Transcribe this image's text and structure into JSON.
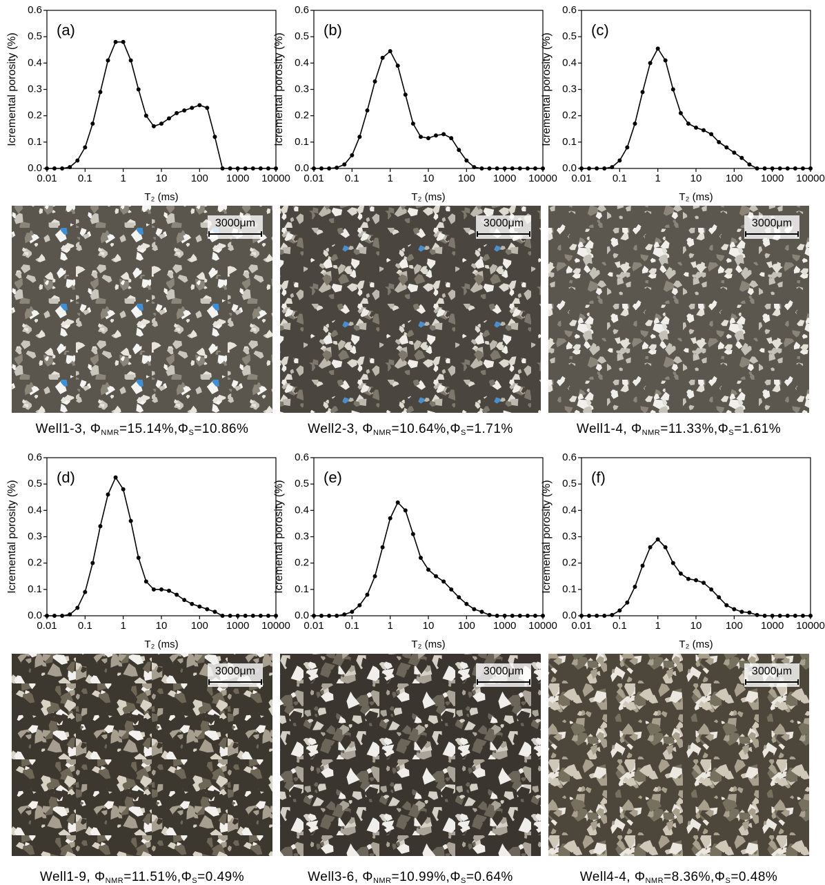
{
  "chart_data": [
    {
      "type": "line",
      "label": "(a)",
      "xlabel": "T₂ (ms)",
      "ylabel": "Icremental porosity (%)",
      "xscale": "log",
      "color": "#000000",
      "x": [
        0.01,
        0.0158,
        0.0251,
        0.0398,
        0.0631,
        0.1,
        0.158,
        0.251,
        0.398,
        0.631,
        1,
        1.58,
        2.51,
        3.98,
        6.31,
        10,
        15.8,
        25.1,
        39.8,
        63.1,
        100,
        158,
        251,
        398,
        631,
        1000,
        1585,
        2512,
        3981,
        6310,
        10000
      ],
      "values": [
        0,
        0,
        0,
        0.005,
        0.03,
        0.08,
        0.17,
        0.29,
        0.41,
        0.48,
        0.48,
        0.41,
        0.3,
        0.2,
        0.16,
        0.17,
        0.19,
        0.21,
        0.22,
        0.23,
        0.24,
        0.23,
        0.12,
        0,
        0,
        0,
        0,
        0,
        0,
        0,
        0
      ],
      "xlim": [
        0.01,
        10000
      ],
      "ylim": [
        0,
        0.6
      ],
      "xticks": [
        0.01,
        0.1,
        1,
        10,
        100,
        1000,
        10000
      ],
      "yticks": [
        {
          "value": 0,
          "label": "0.0"
        },
        0.1,
        0.2,
        0.3,
        0.4,
        0.5,
        0.6
      ]
    },
    {
      "type": "line",
      "label": "(b)",
      "xlabel": "T₂ (ms)",
      "ylabel": "Icremental porosity (%)",
      "xscale": "log",
      "color": "#000000",
      "x": [
        0.01,
        0.0158,
        0.0251,
        0.0398,
        0.0631,
        0.1,
        0.158,
        0.251,
        0.398,
        0.631,
        1,
        1.58,
        2.51,
        3.98,
        6.31,
        10,
        15.8,
        25.1,
        39.8,
        63.1,
        100,
        158,
        251,
        398,
        631,
        1000,
        1585,
        2512,
        3981,
        6310,
        10000
      ],
      "values": [
        0,
        0,
        0,
        0.003,
        0.015,
        0.05,
        0.12,
        0.22,
        0.33,
        0.42,
        0.445,
        0.39,
        0.28,
        0.17,
        0.12,
        0.115,
        0.125,
        0.13,
        0.115,
        0.07,
        0.03,
        0.005,
        0,
        0,
        0,
        0,
        0,
        0,
        0,
        0,
        0
      ],
      "xlim": [
        0.01,
        10000
      ],
      "ylim": [
        0,
        0.6
      ],
      "xticks": [
        0.01,
        0.1,
        1,
        10,
        100,
        1000,
        10000
      ],
      "yticks": [
        {
          "value": 0,
          "label": "0.0"
        },
        0.1,
        0.2,
        0.3,
        0.4,
        0.5,
        0.6
      ]
    },
    {
      "type": "line",
      "label": "(c)",
      "xlabel": "T₂ (ms)",
      "ylabel": "Icremental porosity (%)",
      "xscale": "log",
      "color": "#000000",
      "x": [
        0.01,
        0.0158,
        0.0251,
        0.0398,
        0.0631,
        0.1,
        0.158,
        0.251,
        0.398,
        0.631,
        1,
        1.58,
        2.51,
        3.98,
        6.31,
        10,
        15.8,
        25.1,
        39.8,
        63.1,
        100,
        158,
        251,
        398,
        631,
        1000,
        1585,
        2512,
        3981,
        6310,
        10000
      ],
      "values": [
        0,
        0,
        0,
        0,
        0.005,
        0.03,
        0.08,
        0.17,
        0.29,
        0.4,
        0.455,
        0.41,
        0.3,
        0.21,
        0.17,
        0.155,
        0.145,
        0.13,
        0.1,
        0.08,
        0.06,
        0.04,
        0.015,
        0,
        0,
        0,
        0,
        0,
        0,
        0,
        0
      ],
      "xlim": [
        0.01,
        10000
      ],
      "ylim": [
        0,
        0.6
      ],
      "xticks": [
        0.01,
        0.1,
        1,
        10,
        100,
        1000,
        10000
      ],
      "yticks": [
        {
          "value": 0,
          "label": "0.0"
        },
        0.1,
        0.2,
        0.3,
        0.4,
        0.5,
        0.6
      ]
    },
    {
      "type": "line",
      "label": "(d)",
      "xlabel": "T₂ (ms)",
      "ylabel": "Icremental porosity (%)",
      "xscale": "log",
      "color": "#000000",
      "x": [
        0.01,
        0.0158,
        0.0251,
        0.0398,
        0.0631,
        0.1,
        0.158,
        0.251,
        0.398,
        0.631,
        1,
        1.58,
        2.51,
        3.98,
        6.31,
        10,
        15.8,
        25.1,
        39.8,
        63.1,
        100,
        158,
        251,
        398,
        631,
        1000,
        1585,
        2512,
        3981,
        6310,
        10000
      ],
      "values": [
        0,
        0,
        0,
        0.005,
        0.03,
        0.09,
        0.2,
        0.34,
        0.46,
        0.525,
        0.48,
        0.36,
        0.22,
        0.13,
        0.1,
        0.1,
        0.095,
        0.08,
        0.06,
        0.045,
        0.035,
        0.025,
        0.015,
        0,
        0,
        0,
        0,
        0,
        0,
        0,
        0
      ],
      "xlim": [
        0.01,
        10000
      ],
      "ylim": [
        0,
        0.6
      ],
      "xticks": [
        0.01,
        0.1,
        1,
        10,
        100,
        1000,
        10000
      ],
      "yticks": [
        {
          "value": 0,
          "label": "0.0"
        },
        0.1,
        0.2,
        0.3,
        0.4,
        0.5,
        0.6
      ]
    },
    {
      "type": "line",
      "label": "(e)",
      "xlabel": "T₂ (ms)",
      "ylabel": "Icremental porosity (%)",
      "xscale": "log",
      "color": "#000000",
      "x": [
        0.01,
        0.0158,
        0.0251,
        0.0398,
        0.0631,
        0.1,
        0.158,
        0.251,
        0.398,
        0.631,
        1,
        1.58,
        2.51,
        3.98,
        6.31,
        10,
        15.8,
        25.1,
        39.8,
        63.1,
        100,
        158,
        251,
        398,
        631,
        1000,
        1585,
        2512,
        3981,
        6310,
        10000
      ],
      "values": [
        0,
        0,
        0,
        0,
        0.005,
        0.015,
        0.04,
        0.08,
        0.15,
        0.26,
        0.37,
        0.43,
        0.4,
        0.31,
        0.22,
        0.175,
        0.15,
        0.13,
        0.1,
        0.07,
        0.045,
        0.025,
        0.015,
        0.003,
        0,
        0,
        0,
        0,
        0,
        0,
        0
      ],
      "xlim": [
        0.01,
        10000
      ],
      "ylim": [
        0,
        0.6
      ],
      "xticks": [
        0.01,
        0.1,
        1,
        10,
        100,
        1000,
        10000
      ],
      "yticks": [
        {
          "value": 0,
          "label": "0.0"
        },
        0.1,
        0.2,
        0.3,
        0.4,
        0.5,
        0.6
      ]
    },
    {
      "type": "line",
      "label": "(f)",
      "xlabel": "T₂ (ms)",
      "ylabel": "Icremental porosity (%)",
      "xscale": "log",
      "color": "#000000",
      "x": [
        0.01,
        0.0158,
        0.0251,
        0.0398,
        0.0631,
        0.1,
        0.158,
        0.251,
        0.398,
        0.631,
        1,
        1.58,
        2.51,
        3.98,
        6.31,
        10,
        15.8,
        25.1,
        39.8,
        63.1,
        100,
        158,
        251,
        398,
        631,
        1000,
        1585,
        2512,
        3981,
        6310,
        10000
      ],
      "values": [
        0,
        0,
        0,
        0,
        0.003,
        0.02,
        0.05,
        0.11,
        0.19,
        0.26,
        0.29,
        0.26,
        0.2,
        0.16,
        0.14,
        0.135,
        0.125,
        0.1,
        0.07,
        0.04,
        0.025,
        0.015,
        0.012,
        0.003,
        0,
        0,
        0,
        0,
        0,
        0,
        0
      ],
      "xlim": [
        0.01,
        10000
      ],
      "ylim": [
        0,
        0.6
      ],
      "xticks": [
        0.01,
        0.1,
        1,
        10,
        100,
        1000,
        10000
      ],
      "yticks": [
        {
          "value": 0,
          "label": "0.0"
        },
        0.1,
        0.2,
        0.3,
        0.4,
        0.5,
        0.6
      ]
    }
  ],
  "photos": [
    {
      "scale_bar": "3000μm",
      "caption": [
        "Well1-3, Φ",
        "NMR",
        "=15.14%,Φ",
        "S",
        "=10.86%"
      ]
    },
    {
      "scale_bar": "3000μm",
      "caption": [
        "Well2-3, Φ",
        "NMR",
        "=10.64%,Φ",
        "S",
        "=1.71%"
      ]
    },
    {
      "scale_bar": "3000μm",
      "caption": [
        "Well1-4, Φ",
        "NMR",
        "=11.33%,Φ",
        "S",
        "=1.61%"
      ]
    },
    {
      "scale_bar": "3000μm",
      "caption": [
        "Well1-9, Φ",
        "NMR",
        "=11.51%,Φ",
        "S",
        "=0.49%"
      ]
    },
    {
      "scale_bar": "3000μm",
      "caption": [
        "Well3-6, Φ",
        "NMR",
        "=10.99%,Φ",
        "S",
        "=0.64%"
      ]
    },
    {
      "scale_bar": "3000μm",
      "caption": [
        "Well4-4, Φ",
        "NMR",
        "=8.36%,Φ",
        "S",
        "=0.48%"
      ]
    }
  ]
}
